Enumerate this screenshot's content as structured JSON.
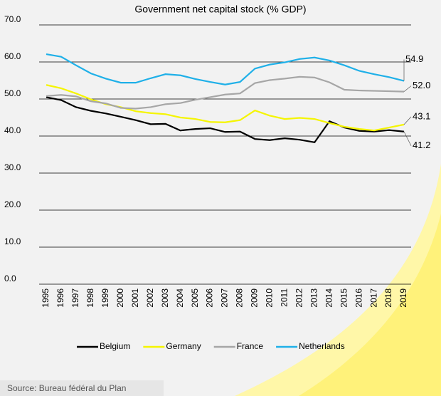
{
  "chart_data": {
    "type": "line",
    "title": "Government net capital stock (% GDP)",
    "categories": [
      "1995",
      "1996",
      "1997",
      "1998",
      "1999",
      "2000",
      "2001",
      "2002",
      "2003",
      "2004",
      "2005",
      "2006",
      "2007",
      "2008",
      "2009",
      "2010",
      "2011",
      "2012",
      "2013",
      "2014",
      "2015",
      "2016",
      "2017",
      "2018",
      "2019"
    ],
    "series": [
      {
        "name": "Belgium",
        "color": "#000000",
        "end_label": "41.2",
        "values": [
          50.5,
          49.7,
          47.8,
          46.8,
          46.1,
          45.2,
          44.3,
          43.2,
          43.3,
          41.5,
          41.9,
          42.1,
          41.1,
          41.2,
          39.2,
          38.9,
          39.4,
          39.0,
          38.3,
          44.0,
          42.3,
          41.4,
          41.2,
          41.6,
          41.2
        ]
      },
      {
        "name": "Germany",
        "color": "#f5f500",
        "end_label": "43.1",
        "values": [
          53.8,
          52.9,
          51.5,
          49.9,
          48.6,
          47.8,
          46.7,
          46.2,
          45.9,
          45.0,
          44.6,
          43.8,
          43.7,
          44.3,
          46.9,
          45.5,
          44.6,
          44.9,
          44.6,
          43.5,
          42.5,
          41.9,
          41.5,
          42.3,
          43.1
        ]
      },
      {
        "name": "France",
        "color": "#a6a6a6",
        "end_label": "52.0",
        "values": [
          50.8,
          51.1,
          50.7,
          49.4,
          48.8,
          47.6,
          47.4,
          47.8,
          48.6,
          48.9,
          49.8,
          50.5,
          51.2,
          51.5,
          54.3,
          55.1,
          55.5,
          56.0,
          55.8,
          54.5,
          52.5,
          52.3,
          52.2,
          52.1,
          52.0
        ]
      },
      {
        "name": "Netherlands",
        "color": "#1fb0e8",
        "end_label": "54.9",
        "values": [
          62.1,
          61.4,
          59.1,
          56.9,
          55.5,
          54.4,
          54.4,
          55.6,
          56.7,
          56.4,
          55.4,
          54.6,
          53.9,
          54.6,
          58.2,
          59.3,
          59.9,
          60.8,
          61.2,
          60.4,
          59.1,
          57.6,
          56.7,
          55.9,
          54.9
        ]
      }
    ],
    "ylim": [
      0,
      70
    ],
    "yticks": [
      {
        "value": 0,
        "label": "0.0"
      },
      {
        "value": 10,
        "label": "10.0"
      },
      {
        "value": 20,
        "label": "20.0"
      },
      {
        "value": 30,
        "label": "30.0"
      },
      {
        "value": 40,
        "label": "40.0"
      },
      {
        "value": 50,
        "label": "50.0"
      },
      {
        "value": 60,
        "label": "60.0"
      },
      {
        "value": 70,
        "label": "70.0"
      }
    ],
    "grid": true,
    "legend": "bottom",
    "source": "Source: Bureau fédéral du Plan"
  }
}
